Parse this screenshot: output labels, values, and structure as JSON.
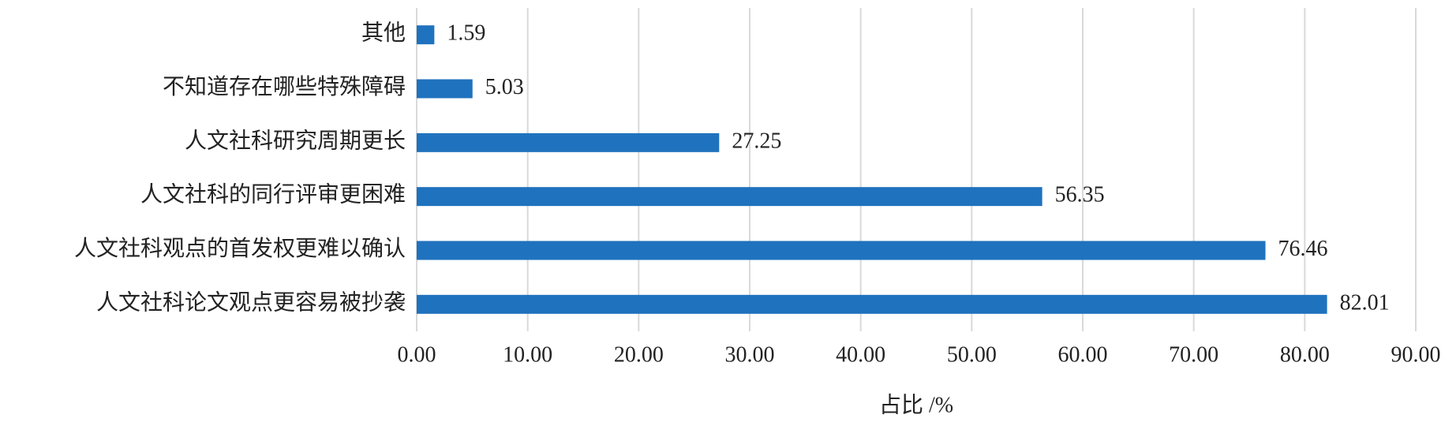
{
  "chart_data": {
    "type": "barh",
    "categories": [
      "其他",
      "不知道存在哪些特殊障碍",
      "人文社科研究周期更长",
      "人文社科的同行评审更困难",
      "人文社科观点的首发权更难以确认",
      "人文社科论文观点更容易被抄袭"
    ],
    "values": [
      1.59,
      5.03,
      27.25,
      56.35,
      76.46,
      82.01
    ],
    "color": "#1f72be",
    "xlabel": "占比 /%",
    "xlim": [
      0,
      90
    ],
    "xticks": [
      {
        "value": 0,
        "label": "0.00"
      },
      {
        "value": 10,
        "label": "10.00"
      },
      {
        "value": 20,
        "label": "20.00"
      },
      {
        "value": 30,
        "label": "30.00"
      },
      {
        "value": 40,
        "label": "40.00"
      },
      {
        "value": 50,
        "label": "50.00"
      },
      {
        "value": 60,
        "label": "60.00"
      },
      {
        "value": 70,
        "label": "70.00"
      },
      {
        "value": 80,
        "label": "80.00"
      },
      {
        "value": 90,
        "label": "90.00"
      }
    ],
    "grid": true
  }
}
